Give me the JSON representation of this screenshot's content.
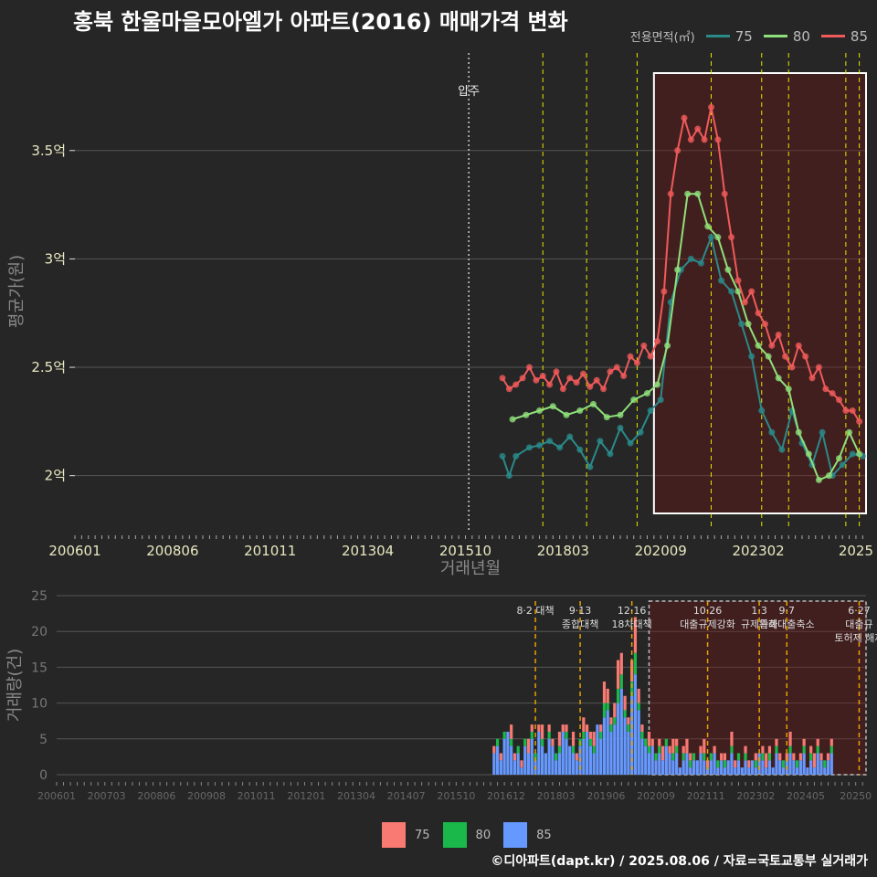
{
  "title": "홍북 한울마을모아엘가 아파트(2016) 매매가격 변화",
  "legend_title": "전용면적(㎡)",
  "series_colors": {
    "75": "#2a8a8a",
    "80": "#8fe07a",
    "85": "#f05a5a"
  },
  "bar_colors": {
    "75": "#f87a72",
    "80": "#1ab84a",
    "85": "#6699ff"
  },
  "footer": "©디아파트(dapt.kr) / 2025.08.06 / 자료=국토교통부 실거래가",
  "chart_data": [
    {
      "type": "line",
      "title": "홍북 한울마을모아엘가 아파트(2016) 매매가격 변화",
      "xlabel": "거래년월",
      "ylabel": "평균가(원)",
      "x_range": [
        "2006-01",
        "2025-08"
      ],
      "ylim": [
        1.75,
        3.95
      ],
      "y_unit": "억",
      "y_ticks": [
        {
          "v": 2,
          "label": "2억"
        },
        {
          "v": 2.5,
          "label": "2.5억"
        },
        {
          "v": 3,
          "label": "3억"
        },
        {
          "v": 3.5,
          "label": "3.5억"
        }
      ],
      "x_ticks": [
        "200601",
        "200806",
        "201011",
        "201304",
        "201510",
        "201803",
        "202009",
        "202302",
        "2025"
      ],
      "annotations": [
        {
          "x": "2015-10",
          "label": "압주",
          "style": "dotted-white"
        }
      ],
      "policy_lines": [
        "2017-08",
        "2018-09",
        "2019-12",
        "2021-10",
        "2023-01",
        "2023-09",
        "2025-02",
        "2025-06"
      ],
      "highlight_box": {
        "from": "2020-05",
        "to": "2025-08"
      },
      "series": [
        {
          "name": "75",
          "x": [
            "2016-08",
            "2016-10",
            "2016-12",
            "2017-04",
            "2017-07",
            "2017-10",
            "2018-01",
            "2018-04",
            "2018-07",
            "2018-10",
            "2019-01",
            "2019-04",
            "2019-07",
            "2019-10",
            "2020-01",
            "2020-04",
            "2020-07",
            "2020-10",
            "2021-01",
            "2021-04",
            "2021-07",
            "2021-10",
            "2022-01",
            "2022-04",
            "2022-07",
            "2022-10",
            "2023-01",
            "2023-04",
            "2023-07",
            "2023-10",
            "2024-01",
            "2024-04",
            "2024-07",
            "2024-10",
            "2025-01",
            "2025-04",
            "2025-07"
          ],
          "values": [
            2.09,
            2.0,
            2.09,
            2.13,
            2.14,
            2.16,
            2.13,
            2.18,
            2.12,
            2.04,
            2.16,
            2.1,
            2.22,
            2.15,
            2.2,
            2.3,
            2.35,
            2.8,
            2.95,
            3.0,
            2.98,
            3.1,
            2.9,
            2.85,
            2.7,
            2.55,
            2.3,
            2.2,
            2.12,
            2.3,
            2.15,
            2.05,
            2.2,
            2.0,
            2.05,
            2.1,
            2.09
          ]
        },
        {
          "name": "80",
          "x": [
            "2016-11",
            "2017-03",
            "2017-07",
            "2017-11",
            "2018-03",
            "2018-07",
            "2018-11",
            "2019-03",
            "2019-07",
            "2019-11",
            "2020-03",
            "2020-06",
            "2020-09",
            "2020-12",
            "2021-03",
            "2021-06",
            "2021-09",
            "2021-12",
            "2022-03",
            "2022-06",
            "2022-09",
            "2022-12",
            "2023-03",
            "2023-06",
            "2023-09",
            "2023-12",
            "2024-03",
            "2024-06",
            "2024-09",
            "2024-12",
            "2025-03",
            "2025-06"
          ],
          "values": [
            2.26,
            2.28,
            2.3,
            2.32,
            2.28,
            2.3,
            2.33,
            2.27,
            2.28,
            2.35,
            2.38,
            2.42,
            2.6,
            2.95,
            3.3,
            3.3,
            3.15,
            3.1,
            2.95,
            2.85,
            2.7,
            2.6,
            2.55,
            2.45,
            2.4,
            2.2,
            2.1,
            1.98,
            2.0,
            2.08,
            2.2,
            2.1
          ]
        },
        {
          "name": "85",
          "x": [
            "2016-08",
            "2016-10",
            "2016-12",
            "2017-02",
            "2017-04",
            "2017-06",
            "2017-08",
            "2017-10",
            "2017-12",
            "2018-02",
            "2018-04",
            "2018-06",
            "2018-08",
            "2018-10",
            "2018-12",
            "2019-02",
            "2019-04",
            "2019-06",
            "2019-08",
            "2019-10",
            "2019-12",
            "2020-02",
            "2020-04",
            "2020-06",
            "2020-08",
            "2020-10",
            "2020-12",
            "2021-02",
            "2021-04",
            "2021-06",
            "2021-08",
            "2021-10",
            "2021-12",
            "2022-02",
            "2022-04",
            "2022-06",
            "2022-08",
            "2022-10",
            "2022-12",
            "2023-02",
            "2023-04",
            "2023-06",
            "2023-08",
            "2023-10",
            "2023-12",
            "2024-02",
            "2024-04",
            "2024-06",
            "2024-08",
            "2024-10",
            "2024-12",
            "2025-02",
            "2025-04",
            "2025-06"
          ],
          "values": [
            2.45,
            2.4,
            2.42,
            2.45,
            2.5,
            2.44,
            2.46,
            2.42,
            2.48,
            2.4,
            2.45,
            2.43,
            2.47,
            2.41,
            2.44,
            2.4,
            2.48,
            2.5,
            2.46,
            2.55,
            2.52,
            2.6,
            2.55,
            2.62,
            2.85,
            3.3,
            3.5,
            3.65,
            3.55,
            3.6,
            3.55,
            3.7,
            3.55,
            3.3,
            3.1,
            2.9,
            2.8,
            2.85,
            2.75,
            2.7,
            2.6,
            2.65,
            2.55,
            2.5,
            2.6,
            2.55,
            2.45,
            2.5,
            2.4,
            2.38,
            2.35,
            2.3,
            2.3,
            2.25
          ]
        }
      ]
    },
    {
      "type": "bar",
      "stacked": true,
      "xlabel": "",
      "ylabel": "거래량(건)",
      "ylim": [
        0,
        25
      ],
      "y_ticks": [
        0,
        5,
        10,
        15,
        20,
        25
      ],
      "x_ticks": [
        "200601",
        "200703",
        "200806",
        "200908",
        "201011",
        "201201",
        "201304",
        "201407",
        "201510",
        "201612",
        "201803",
        "201906",
        "202009",
        "202111",
        "202302",
        "202405",
        "20250"
      ],
      "policy_labels": [
        {
          "x": "2017-08",
          "lines": [
            "8·2 대책"
          ]
        },
        {
          "x": "2018-09",
          "lines": [
            "9·13",
            "종합대책"
          ]
        },
        {
          "x": "2019-12",
          "lines": [
            "12·16",
            "18차대책"
          ]
        },
        {
          "x": "2021-10",
          "lines": [
            "10·26",
            "대출규제강화"
          ]
        },
        {
          "x": "2023-01",
          "lines": [
            "1·3",
            "규제완화"
          ]
        },
        {
          "x": "2023-09",
          "lines": [
            "9·7",
            "특례대출축소"
          ]
        },
        {
          "x": "2025-06",
          "lines": [
            "6·27",
            "대출규",
            "토허제 해제"
          ]
        }
      ],
      "months_from": "2016-08",
      "series": [
        {
          "name": "75",
          "values": [
            1,
            0,
            1,
            0,
            0,
            2,
            1,
            0,
            1,
            0,
            2,
            1,
            0,
            1,
            2,
            0,
            1,
            1,
            0,
            2,
            1,
            1,
            0,
            2,
            1,
            0,
            2,
            1,
            1,
            2,
            0,
            1,
            3,
            2,
            1,
            2,
            4,
            3,
            2,
            1,
            3,
            5,
            2,
            1,
            0,
            2,
            1,
            0,
            1,
            2,
            0,
            1,
            2,
            1,
            0,
            1,
            2,
            1,
            0,
            0,
            1,
            2,
            1,
            0,
            1,
            0,
            1,
            1,
            0,
            2,
            1,
            0,
            0,
            1,
            1,
            0,
            1,
            0,
            1,
            2,
            1,
            0,
            1,
            1,
            0,
            1,
            2,
            1,
            0,
            1,
            1,
            0,
            1,
            2,
            1,
            1,
            0,
            1,
            1
          ]
        },
        {
          "name": "80",
          "values": [
            0,
            1,
            0,
            1,
            0,
            1,
            0,
            1,
            0,
            1,
            0,
            1,
            1,
            0,
            1,
            0,
            1,
            0,
            1,
            1,
            0,
            1,
            0,
            1,
            0,
            1,
            1,
            0,
            1,
            1,
            0,
            1,
            2,
            1,
            1,
            1,
            2,
            2,
            1,
            1,
            2,
            3,
            1,
            1,
            1,
            1,
            0,
            1,
            1,
            0,
            1,
            0,
            1,
            1,
            0,
            1,
            0,
            1,
            1,
            0,
            0,
            1,
            0,
            1,
            0,
            1,
            0,
            1,
            0,
            1,
            0,
            1,
            0,
            1,
            0,
            0,
            1,
            0,
            1,
            0,
            1,
            0,
            1,
            0,
            1,
            0,
            1,
            0,
            1,
            0,
            1,
            0,
            1,
            0,
            1,
            0,
            1,
            0,
            1
          ]
        },
        {
          "name": "85",
          "values": [
            3,
            4,
            2,
            5,
            6,
            4,
            2,
            3,
            1,
            4,
            3,
            5,
            2,
            6,
            4,
            3,
            5,
            4,
            2,
            3,
            6,
            5,
            4,
            3,
            2,
            4,
            5,
            6,
            4,
            3,
            7,
            5,
            8,
            9,
            6,
            7,
            10,
            12,
            8,
            6,
            11,
            14,
            9,
            5,
            4,
            3,
            4,
            2,
            3,
            2,
            4,
            3,
            2,
            3,
            1,
            2,
            3,
            1,
            2,
            2,
            3,
            2,
            1,
            2,
            3,
            1,
            2,
            1,
            2,
            3,
            1,
            2,
            1,
            2,
            1,
            2,
            1,
            3,
            2,
            1,
            2,
            1,
            3,
            2,
            1,
            2,
            3,
            2,
            1,
            2,
            3,
            1,
            2,
            1,
            3,
            2,
            1,
            2,
            3
          ]
        }
      ]
    }
  ],
  "bar_legend": [
    "75",
    "80",
    "85"
  ]
}
